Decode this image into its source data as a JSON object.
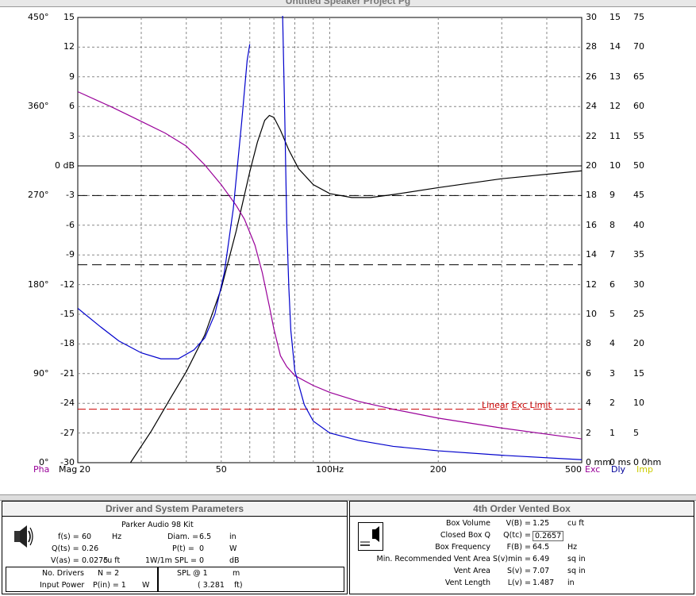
{
  "window": {
    "title": "Untitled Speaker Project Pg"
  },
  "chart_data": {
    "type": "line",
    "x_axis": {
      "scale": "log",
      "range": [
        20,
        500
      ],
      "tick_labels": [
        "20",
        "50",
        "100Hz",
        "200",
        "500"
      ]
    },
    "left_axis_mag": {
      "label": "Mag",
      "unit": "dB",
      "range": [
        -30,
        15
      ],
      "tick_labels": [
        "15",
        "12",
        "9",
        "6",
        "3",
        "0 dB",
        "-3",
        "-6",
        "-9",
        "-12",
        "-15",
        "-18",
        "-21",
        "-24",
        "-27",
        "-30"
      ]
    },
    "left_axis_phase": {
      "label": "Pha",
      "range": [
        0,
        450
      ],
      "tick_labels": [
        "450°",
        "360°",
        "270°",
        "180°",
        "90°",
        "0°"
      ]
    },
    "right_axis_exc": {
      "label": "Exc",
      "unit": "mm",
      "range": [
        0,
        30
      ],
      "tick_labels": [
        "30",
        "28",
        "26",
        "24",
        "22",
        "20",
        "18",
        "16",
        "14",
        "12",
        "10",
        "8",
        "6",
        "4",
        "2",
        "0 mm"
      ]
    },
    "right_axis_dly": {
      "label": "Dly",
      "unit": "ms",
      "range": [
        0,
        15
      ],
      "tick_labels": [
        "15",
        "14",
        "13",
        "12",
        "11",
        "10",
        "9",
        "8",
        "7",
        "6",
        "5",
        "4",
        "3",
        "2",
        "1",
        "0 ms"
      ]
    },
    "right_axis_imp": {
      "label": "Imp",
      "unit": "Ohm",
      "range": [
        0,
        75
      ],
      "tick_labels": [
        "75",
        "70",
        "65",
        "60",
        "55",
        "50",
        "45",
        "40",
        "35",
        "30",
        "25",
        "20",
        "15",
        "10",
        "5",
        "0 0hm"
      ]
    },
    "reference_lines": [
      {
        "name": "0 dB",
        "value": 0,
        "style": "solid"
      },
      {
        "name": "-3 dB",
        "value": -3,
        "style": "dashed"
      },
      {
        "name": "-10 dB",
        "value": -10,
        "style": "dashed"
      }
    ],
    "exc_limit": {
      "label": "Linear Exc Limit",
      "value_mm": 3.6
    },
    "series": [
      {
        "name": "Mag",
        "color": "#000000",
        "axis": "mag",
        "x": [
          28,
          32,
          36,
          40,
          45,
          50,
          55,
          60,
          63,
          66,
          68,
          70,
          73,
          77,
          82,
          90,
          100,
          115,
          130,
          150,
          200,
          300,
          500
        ],
        "y": [
          -30,
          -26.8,
          -23.6,
          -20.8,
          -17.1,
          -12.4,
          -6.6,
          -0.6,
          2.4,
          4.6,
          5.1,
          4.9,
          3.6,
          1.6,
          -0.3,
          -1.9,
          -2.8,
          -3.2,
          -3.2,
          -2.9,
          -2.2,
          -1.3,
          -0.5
        ]
      },
      {
        "name": "Pha",
        "color": "#990099",
        "axis": "phase",
        "x": [
          20,
          25,
          30,
          35,
          40,
          45,
          50,
          55,
          58,
          62,
          65,
          68,
          70,
          73,
          76,
          80,
          90,
          100,
          120,
          150,
          200,
          300,
          500
        ],
        "y": [
          375,
          359,
          345,
          333,
          320,
          301,
          281,
          260,
          246,
          220,
          192,
          158,
          135,
          108,
          97,
          88,
          78,
          71,
          62,
          54,
          45,
          35,
          24
        ]
      },
      {
        "name": "Exc",
        "color": "#0000cc",
        "axis": "exc",
        "x": [
          20,
          23,
          26,
          30,
          34,
          38,
          42,
          45,
          48,
          51,
          54,
          57,
          59,
          60,
          74,
          75,
          76,
          77,
          78,
          80,
          85,
          90,
          100,
          120,
          150,
          200,
          300,
          500
        ],
        "y": [
          10.4,
          9.2,
          8.2,
          7.4,
          7.0,
          7.0,
          7.6,
          8.4,
          10.0,
          12.8,
          17.1,
          23.0,
          27.1,
          28.2,
          30.2,
          23.5,
          16.0,
          11.8,
          8.9,
          6.2,
          3.9,
          2.8,
          2.0,
          1.5,
          1.1,
          0.8,
          0.5,
          0.2
        ]
      }
    ],
    "x_axis_bottom_labels": [
      "Pha",
      "Mag",
      "Exc",
      "Dly",
      "Imp"
    ]
  },
  "driver_panel": {
    "title": "Driver and System Parameters",
    "driver_name": "Parker Audio  98 Kit",
    "fs_label": "f(s) =",
    "fs_value": "60",
    "fs_unit": "Hz",
    "qts_label": "Q(ts) =",
    "qts_value": "0.26",
    "vas_label": "V(as) =",
    "vas_value": "0.0275",
    "vas_unit": "cu ft",
    "diam_label": "Diam. =",
    "diam_value": "6.5",
    "diam_unit": "in",
    "pt_label": "P(t) =",
    "pt_value": "0",
    "pt_unit": "W",
    "spl_label": "1W/1m SPL =",
    "spl_value": "0",
    "spl_unit": "dB",
    "drivers_label": "No. Drivers",
    "drivers_value": "N = 2",
    "power_label": "Input Power",
    "power_value": "P(in) = 1",
    "power_unit": "W",
    "splat_label": "SPL @ 1",
    "splat_unit": "m",
    "splat_ft": "( 3.281",
    "splat_ft_unit": "ft)"
  },
  "box_panel": {
    "title": "4th Order Vented Box",
    "rows": [
      {
        "label": "Box Volume",
        "sym": "V(B) =",
        "value": "1.25",
        "unit": "cu ft",
        "boxed": true
      },
      {
        "label": "Closed Box Q",
        "sym": "Q(tc) =",
        "value": "0.2657",
        "unit": "",
        "boxed": true
      },
      {
        "label": "Box Frequency",
        "sym": "F(B) =",
        "value": "64.5",
        "unit": "Hz",
        "boxed": false
      },
      {
        "label": "Min. Recommended Vent Area",
        "sym": "S(v)min =",
        "value": "6.49",
        "unit": "sq in",
        "boxed": false
      },
      {
        "label": "Vent Area",
        "sym": "S(v) =",
        "value": "7.07",
        "unit": "sq in",
        "boxed": false
      },
      {
        "label": "Vent Length",
        "sym": "L(v) =",
        "value": "1.487",
        "unit": "in",
        "boxed": false
      }
    ]
  },
  "colors": {
    "mag": "#000000",
    "pha": "#990099",
    "exc": "#0000cc",
    "dly": "#000099",
    "imp": "#cccc00",
    "limit": "#cc0000"
  }
}
